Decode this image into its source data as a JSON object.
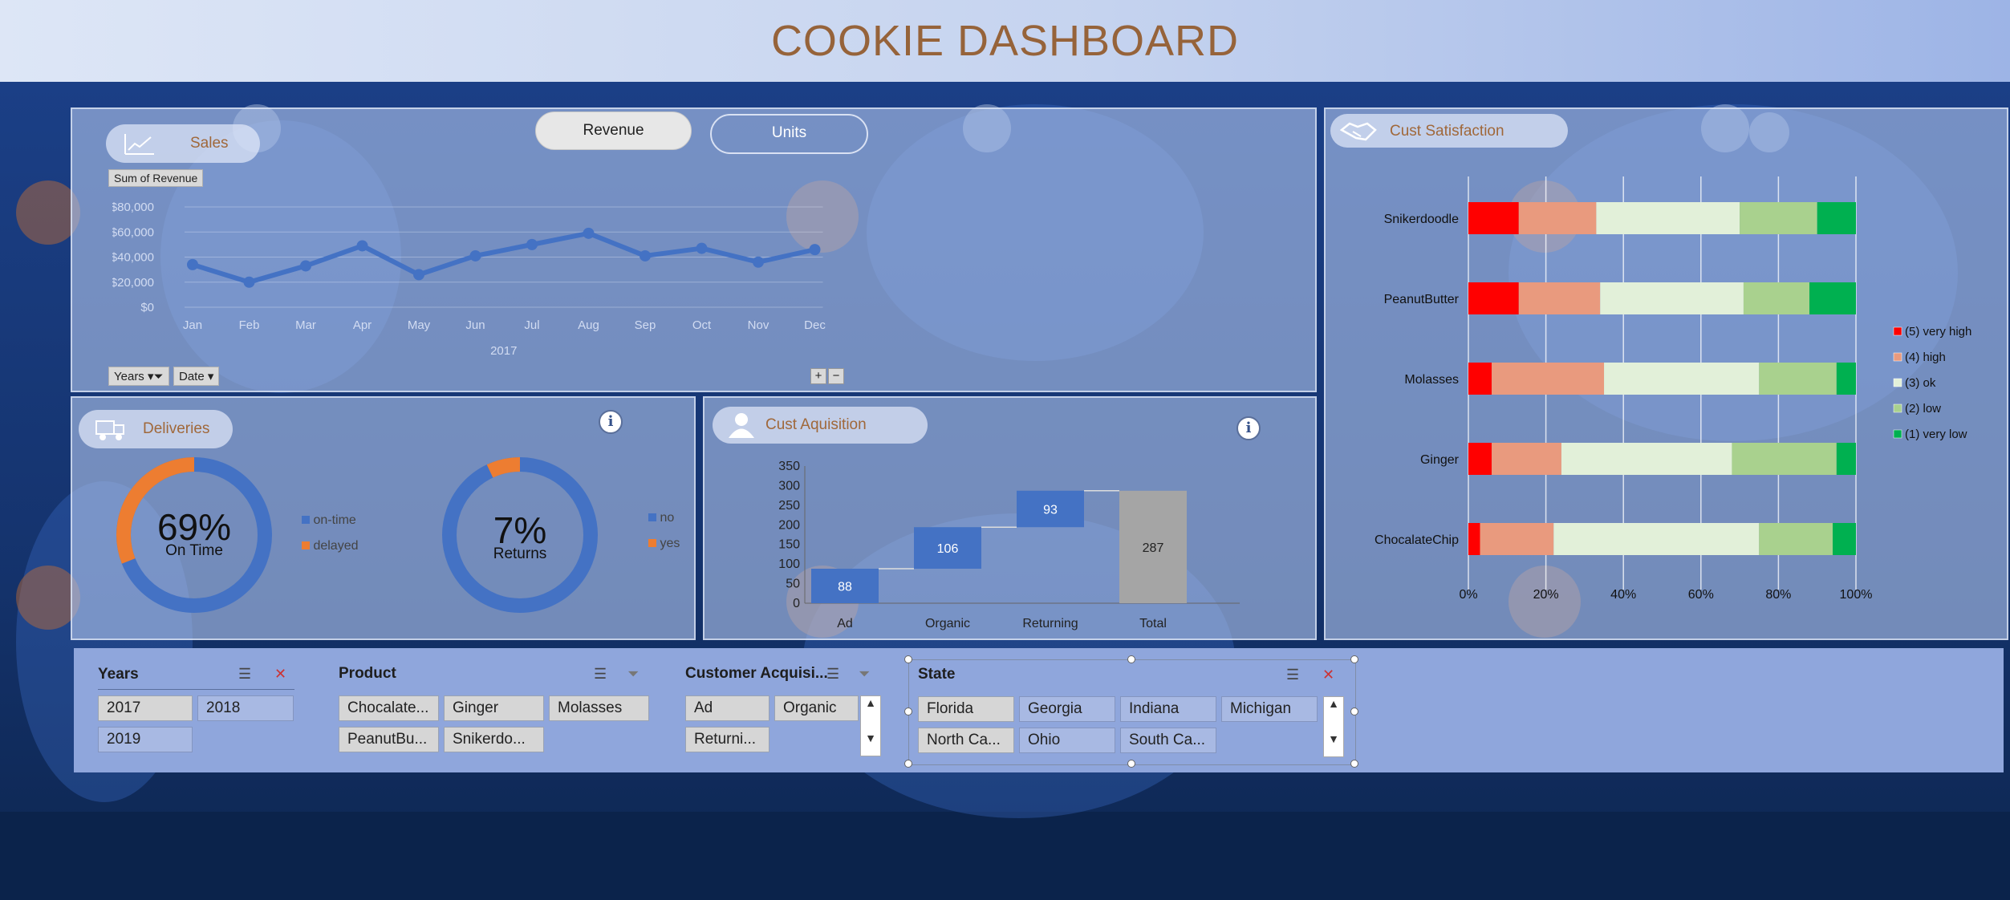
{
  "title": "COOKIE DASHBOARD",
  "sales": {
    "label": "Sales",
    "toggle_revenue": "Revenue",
    "toggle_units": "Units",
    "field_button": "Sum of Revenue",
    "year_label": "2017",
    "filter_years": "Years",
    "filter_date": "Date",
    "expand": "+",
    "collapse": "−"
  },
  "chart_sales": {
    "type": "line",
    "categories": [
      "Jan",
      "Feb",
      "Mar",
      "Apr",
      "May",
      "Jun",
      "Jul",
      "Aug",
      "Sep",
      "Oct",
      "Nov",
      "Dec"
    ],
    "values": [
      34000,
      20000,
      33000,
      49000,
      26000,
      41000,
      50000,
      59000,
      41000,
      47000,
      36000,
      46000
    ],
    "yticks": [
      "$0",
      "$20,000",
      "$40,000",
      "$60,000",
      "$80,000"
    ],
    "ylim": [
      0,
      80000
    ],
    "color": "#4472c4"
  },
  "deliveries": {
    "label": "Deliveries",
    "info": "i",
    "donut1": {
      "percent": "69%",
      "caption": "On Time",
      "fraction": 0.69,
      "legend": [
        "on-time",
        "delayed"
      ]
    },
    "donut2": {
      "percent": "7%",
      "caption": "Returns",
      "fraction": 0.07,
      "legend": [
        "no",
        "yes"
      ]
    }
  },
  "acquisition": {
    "label": "Cust Aquisition",
    "info": "i"
  },
  "chart_acq": {
    "type": "bar",
    "categories": [
      "Ad",
      "Organic",
      "Returning",
      "Total"
    ],
    "values": [
      88,
      106,
      93,
      287
    ],
    "labels": [
      "88",
      "106",
      "93",
      "287"
    ],
    "yticks": [
      "0",
      "50",
      "100",
      "150",
      "200",
      "250",
      "300",
      "350"
    ],
    "ylim": [
      0,
      350
    ],
    "colors": [
      "#4472c4",
      "#4472c4",
      "#4472c4",
      "#a5a5a5"
    ]
  },
  "satisfaction": {
    "label": "Cust Satisfaction"
  },
  "chart_sat": {
    "type": "bar",
    "categories": [
      "Snikerdoodle",
      "PeanutButter",
      "Molasses",
      "Ginger",
      "ChocalateChip"
    ],
    "series_names": [
      "(5) very high",
      "(4) high",
      "(3) ok",
      "(2) low",
      "(1) very low"
    ],
    "colors": [
      "#ff0000",
      "#e99a7e",
      "#e2f0d9",
      "#a9d18e",
      "#00b050"
    ],
    "values": [
      [
        13,
        20,
        37,
        20,
        10
      ],
      [
        13,
        21,
        37,
        17,
        12
      ],
      [
        6,
        29,
        40,
        20,
        5
      ],
      [
        6,
        18,
        44,
        27,
        5
      ],
      [
        3,
        19,
        53,
        19,
        6
      ]
    ],
    "xticks": [
      "0%",
      "20%",
      "40%",
      "60%",
      "80%",
      "100%"
    ]
  },
  "slicers": {
    "years": {
      "title": "Years",
      "items": [
        "2017",
        "2018",
        "2019"
      ]
    },
    "product": {
      "title": "Product",
      "items": [
        "Chocalate...",
        "Ginger",
        "Molasses",
        "PeanutBu...",
        "Snikerdo..."
      ]
    },
    "acquisition": {
      "title": "Customer Acquisi...",
      "items": [
        "Ad",
        "Organic",
        "Returni..."
      ]
    },
    "state": {
      "title": "State",
      "items": [
        "Florida",
        "Georgia",
        "Indiana",
        "Michigan",
        "North Ca...",
        "Ohio",
        "South Ca..."
      ]
    }
  }
}
